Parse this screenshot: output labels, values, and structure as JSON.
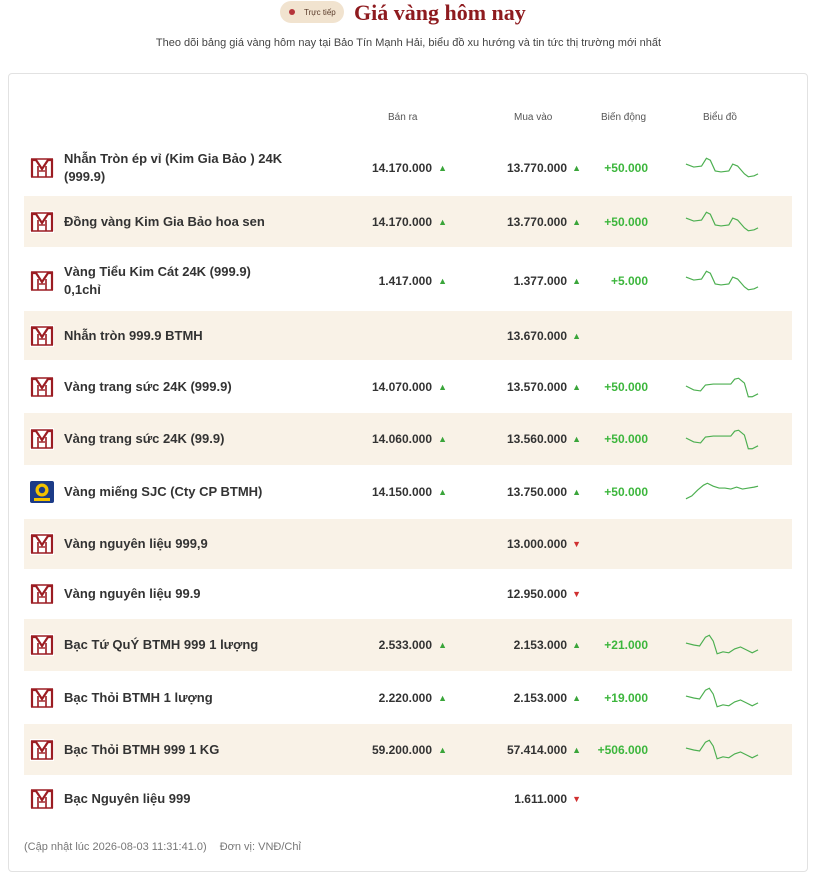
{
  "header": {
    "live_label": "Trực tiếp",
    "title": "Giá vàng hôm nay",
    "subtitle": "Theo dõi bảng giá vàng hôm nay tại Bảo Tín Mạnh Hải, biểu đồ xu hướng và tin tức thị trường mới nhất"
  },
  "columns": {
    "sell": "Bán ra",
    "buy": "Mua vào",
    "change": "Biến động",
    "chart": "Biểu đồ"
  },
  "colors": {
    "brand": "#8e1b1f",
    "row_shade": "#f9f2e7",
    "up": "#3cb63c",
    "down": "#d03030",
    "spark": "#4caf50"
  },
  "rows": [
    {
      "name": "Nhẫn Tròn ép vỉ (Kim Gia Bảo ) 24K (999.9)",
      "logo": "btmh-logo",
      "sell": "14.170.000",
      "sell_dir": "up",
      "buy": "13.770.000",
      "buy_dir": "up",
      "change": "+50.000",
      "spark": "A"
    },
    {
      "name": "Đồng vàng Kim Gia Bảo hoa sen",
      "logo": "btmh-logo",
      "sell": "14.170.000",
      "sell_dir": "up",
      "buy": "13.770.000",
      "buy_dir": "up",
      "change": "+50.000",
      "spark": "A"
    },
    {
      "name": "Vàng Tiểu Kim Cát 24K (999.9) 0,1chỉ",
      "logo": "btmh-logo",
      "sell": "1.417.000",
      "sell_dir": "up",
      "buy": "1.377.000",
      "buy_dir": "up",
      "change": "+5.000",
      "spark": "A"
    },
    {
      "name": "Nhẫn tròn 999.9 BTMH",
      "logo": "btmh-logo",
      "sell": "",
      "sell_dir": "",
      "buy": "13.670.000",
      "buy_dir": "up",
      "change": "",
      "spark": ""
    },
    {
      "name": "Vàng trang sức 24K (999.9)",
      "logo": "btmh-logo",
      "sell": "14.070.000",
      "sell_dir": "up",
      "buy": "13.570.000",
      "buy_dir": "up",
      "change": "+50.000",
      "spark": "B"
    },
    {
      "name": "Vàng trang sức 24K (99.9)",
      "logo": "btmh-logo",
      "sell": "14.060.000",
      "sell_dir": "up",
      "buy": "13.560.000",
      "buy_dir": "up",
      "change": "+50.000",
      "spark": "B"
    },
    {
      "name": "Vàng miếng SJC (Cty CP BTMH)",
      "logo": "sjc-logo",
      "sell": "14.150.000",
      "sell_dir": "up",
      "buy": "13.750.000",
      "buy_dir": "up",
      "change": "+50.000",
      "spark": "C"
    },
    {
      "name": "Vàng nguyên liệu 999,9",
      "logo": "btmh-logo",
      "sell": "",
      "sell_dir": "",
      "buy": "13.000.000",
      "buy_dir": "down",
      "change": "",
      "spark": ""
    },
    {
      "name": "Vàng nguyên liệu 99.9",
      "logo": "btmh-logo",
      "sell": "",
      "sell_dir": "",
      "buy": "12.950.000",
      "buy_dir": "down",
      "change": "",
      "spark": ""
    },
    {
      "name": "Bạc Tứ QuÝ BTMH 999 1 lượng",
      "logo": "btmh-logo",
      "sell": "2.533.000",
      "sell_dir": "up",
      "buy": "2.153.000",
      "buy_dir": "up",
      "change": "+21.000",
      "spark": "D"
    },
    {
      "name": "Bạc Thỏi BTMH 1 lượng",
      "logo": "btmh-logo",
      "sell": "2.220.000",
      "sell_dir": "up",
      "buy": "2.153.000",
      "buy_dir": "up",
      "change": "+19.000",
      "spark": "D"
    },
    {
      "name": "Bạc Thỏi BTMH 999 1 KG",
      "logo": "btmh-logo",
      "sell": "59.200.000",
      "sell_dir": "up",
      "buy": "57.414.000",
      "buy_dir": "up",
      "change": "+506.000",
      "spark": "D"
    },
    {
      "name": "Bạc Nguyên liệu 999",
      "logo": "btmh-logo",
      "sell": "",
      "sell_dir": "",
      "buy": "1.611.000",
      "buy_dir": "down",
      "change": "",
      "spark": ""
    }
  ],
  "footer": {
    "updated": "(Cập nhật lúc 2026-08-03 11:31:41.0)",
    "unit": "Đơn vị: VNĐ/Chỉ"
  }
}
